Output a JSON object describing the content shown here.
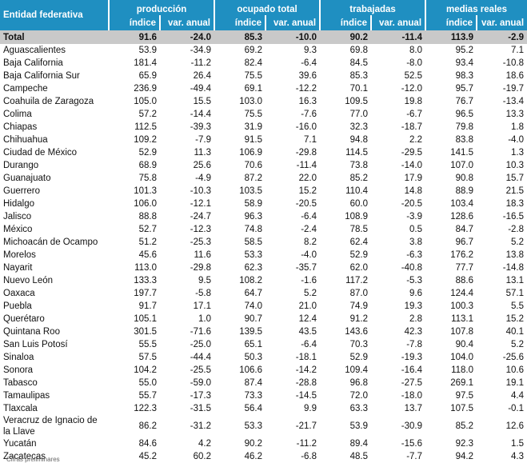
{
  "header": {
    "entity_col": "Entidad federativa",
    "groups": [
      "producción",
      "ocupado total",
      "trabajadas",
      "medias reales"
    ],
    "sub": [
      "índice",
      "var. anual"
    ]
  },
  "total": {
    "name": "Total",
    "v": [
      "91.6",
      "-24.0",
      "85.3",
      "-10.0",
      "90.2",
      "-11.4",
      "113.9",
      "-2.9"
    ]
  },
  "rows": [
    {
      "name": "Aguascalientes",
      "v": [
        "53.9",
        "-34.9",
        "69.2",
        "9.3",
        "69.8",
        "8.0",
        "95.2",
        "7.1"
      ]
    },
    {
      "name": "Baja California",
      "v": [
        "181.4",
        "-11.2",
        "82.4",
        "-6.4",
        "84.5",
        "-8.0",
        "93.4",
        "-10.8"
      ]
    },
    {
      "name": "Baja California Sur",
      "v": [
        "65.9",
        "26.4",
        "75.5",
        "39.6",
        "85.3",
        "52.5",
        "98.3",
        "18.6"
      ]
    },
    {
      "name": "Campeche",
      "v": [
        "236.9",
        "-49.4",
        "69.1",
        "-12.2",
        "70.1",
        "-12.0",
        "95.7",
        "-19.7"
      ]
    },
    {
      "name": "Coahuila de Zaragoza",
      "v": [
        "105.0",
        "15.5",
        "103.0",
        "16.3",
        "109.5",
        "19.8",
        "76.7",
        "-13.4"
      ]
    },
    {
      "name": "Colima",
      "v": [
        "57.2",
        "-14.4",
        "75.5",
        "-7.6",
        "77.0",
        "-6.7",
        "96.5",
        "13.3"
      ]
    },
    {
      "name": "Chiapas",
      "v": [
        "112.5",
        "-39.3",
        "31.9",
        "-16.0",
        "32.3",
        "-18.7",
        "79.8",
        "1.8"
      ]
    },
    {
      "name": "Chihuahua",
      "v": [
        "109.2",
        "-7.9",
        "91.5",
        "7.1",
        "94.8",
        "2.2",
        "83.8",
        "-4.0"
      ]
    },
    {
      "name": "Ciudad de México",
      "v": [
        "52.9",
        "11.3",
        "106.9",
        "-29.8",
        "114.5",
        "-29.5",
        "141.5",
        "1.3"
      ]
    },
    {
      "name": "Durango",
      "v": [
        "68.9",
        "25.6",
        "70.6",
        "-11.4",
        "73.8",
        "-14.0",
        "107.0",
        "10.3"
      ]
    },
    {
      "name": "Guanajuato",
      "v": [
        "75.8",
        "-4.9",
        "87.2",
        "22.0",
        "85.2",
        "17.9",
        "90.8",
        "15.7"
      ]
    },
    {
      "name": "Guerrero",
      "v": [
        "101.3",
        "-10.3",
        "103.5",
        "15.2",
        "110.4",
        "14.8",
        "88.9",
        "21.5"
      ]
    },
    {
      "name": "Hidalgo",
      "v": [
        "106.0",
        "-12.1",
        "58.9",
        "-20.5",
        "60.0",
        "-20.5",
        "103.4",
        "18.3"
      ]
    },
    {
      "name": "Jalisco",
      "v": [
        "88.8",
        "-24.7",
        "96.3",
        "-6.4",
        "108.9",
        "-3.9",
        "128.6",
        "-16.5"
      ]
    },
    {
      "name": "México",
      "v": [
        "52.7",
        "-12.3",
        "74.8",
        "-2.4",
        "78.5",
        "0.5",
        "84.7",
        "-2.8"
      ]
    },
    {
      "name": "Michoacán de Ocampo",
      "v": [
        "51.2",
        "-25.3",
        "58.5",
        "8.2",
        "62.4",
        "3.8",
        "96.7",
        "5.2"
      ]
    },
    {
      "name": "Morelos",
      "v": [
        "45.6",
        "11.6",
        "53.3",
        "-4.0",
        "52.9",
        "-6.3",
        "176.2",
        "13.8"
      ]
    },
    {
      "name": "Nayarit",
      "v": [
        "113.0",
        "-29.8",
        "62.3",
        "-35.7",
        "62.0",
        "-40.8",
        "77.7",
        "-14.8"
      ]
    },
    {
      "name": "Nuevo León",
      "v": [
        "133.3",
        "9.5",
        "108.2",
        "-1.6",
        "117.2",
        "-5.3",
        "88.6",
        "13.1"
      ]
    },
    {
      "name": "Oaxaca",
      "v": [
        "197.7",
        "-5.8",
        "64.7",
        "5.2",
        "87.0",
        "9.6",
        "124.4",
        "57.1"
      ]
    },
    {
      "name": "Puebla",
      "v": [
        "91.7",
        "17.1",
        "74.0",
        "21.0",
        "74.9",
        "19.3",
        "100.3",
        "5.5"
      ]
    },
    {
      "name": "Querétaro",
      "v": [
        "105.1",
        "1.0",
        "90.7",
        "12.4",
        "91.2",
        "2.8",
        "113.1",
        "15.2"
      ]
    },
    {
      "name": "Quintana Roo",
      "v": [
        "301.5",
        "-71.6",
        "139.5",
        "43.5",
        "143.6",
        "42.3",
        "107.8",
        "40.1"
      ]
    },
    {
      "name": "San Luis Potosí",
      "v": [
        "55.5",
        "-25.0",
        "65.1",
        "-6.4",
        "70.3",
        "-7.8",
        "90.4",
        "5.2"
      ]
    },
    {
      "name": "Sinaloa",
      "v": [
        "57.5",
        "-44.4",
        "50.3",
        "-18.1",
        "52.9",
        "-19.3",
        "104.0",
        "-25.6"
      ]
    },
    {
      "name": "Sonora",
      "v": [
        "104.2",
        "-25.5",
        "106.6",
        "-14.2",
        "109.4",
        "-16.4",
        "118.0",
        "10.6"
      ]
    },
    {
      "name": "Tabasco",
      "v": [
        "55.0",
        "-59.0",
        "87.4",
        "-28.8",
        "96.8",
        "-27.5",
        "269.1",
        "19.1"
      ]
    },
    {
      "name": "Tamaulipas",
      "v": [
        "55.7",
        "-17.3",
        "73.3",
        "-14.5",
        "72.0",
        "-18.0",
        "97.5",
        "4.4"
      ]
    },
    {
      "name": "Tlaxcala",
      "v": [
        "122.3",
        "-31.5",
        "56.4",
        "9.9",
        "63.3",
        "13.7",
        "107.5",
        "-0.1"
      ]
    },
    {
      "name": "Veracruz de Ignacio de la Llave",
      "v": [
        "86.2",
        "-31.2",
        "53.3",
        "-21.7",
        "53.9",
        "-30.9",
        "85.2",
        "12.6"
      ],
      "tall": true
    },
    {
      "name": "Yucatán",
      "v": [
        "84.6",
        "4.2",
        "90.2",
        "-11.2",
        "89.4",
        "-15.6",
        "92.3",
        "1.5"
      ]
    },
    {
      "name": "Zacatecas",
      "v": [
        "45.2",
        "60.2",
        "46.2",
        "-6.8",
        "48.5",
        "-7.7",
        "94.2",
        "4.3"
      ]
    }
  ],
  "note": "Cifras preliminares"
}
